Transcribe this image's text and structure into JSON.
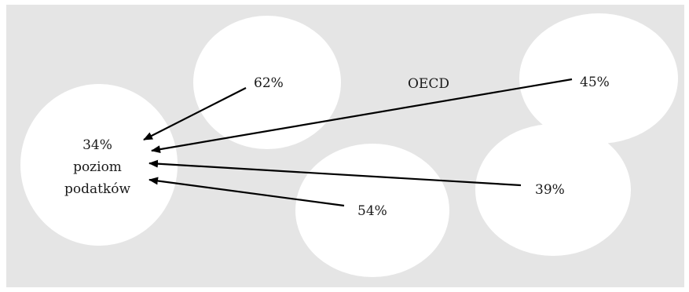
{
  "diagram": {
    "header_label": "OECD",
    "center_node": {
      "value": "34%",
      "line2": "poziom",
      "line3": "podatków"
    },
    "nodes": [
      {
        "id": "node-62",
        "value": "62%"
      },
      {
        "id": "node-45",
        "value": "45%"
      },
      {
        "id": "node-54",
        "value": "54%"
      },
      {
        "id": "node-39",
        "value": "39%"
      }
    ],
    "colors": {
      "background": "#e5e5e5",
      "ellipse": "#ffffff",
      "arrow": "#000000",
      "text": "#1a1a1a"
    }
  }
}
